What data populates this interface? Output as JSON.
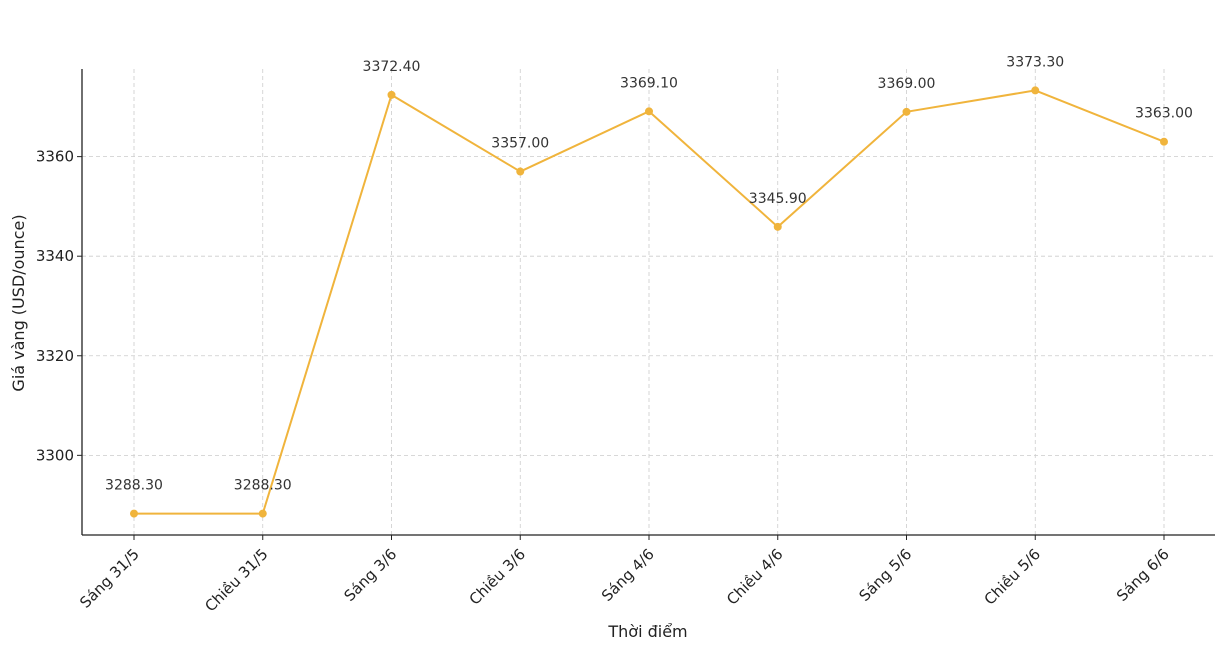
{
  "chart_data": {
    "type": "line",
    "title": "",
    "xlabel": "Thời điểm",
    "ylabel": "Giá vàng (USD/ounce)",
    "categories": [
      "Sáng 31/5",
      "Chiều 31/5",
      "Sáng 3/6",
      "Chiều 3/6",
      "Sáng 4/6",
      "Chiều 4/6",
      "Sáng 5/6",
      "Chiều 5/6",
      "Sáng 6/6"
    ],
    "series": [
      {
        "values": [
          3288.3,
          3288.3,
          3372.4,
          3357.0,
          3369.1,
          3345.9,
          3369.0,
          3373.3,
          3363.0
        ]
      }
    ],
    "data_labels": [
      "3288.30",
      "3288.30",
      "3372.40",
      "3357.00",
      "3369.10",
      "3345.90",
      "3369.00",
      "3373.30",
      "3363.00"
    ],
    "yticks": [
      3300,
      3320,
      3340,
      3360
    ],
    "ylim": [
      3284,
      3377.6
    ],
    "grid": true,
    "line_color": "#F0B43C"
  }
}
